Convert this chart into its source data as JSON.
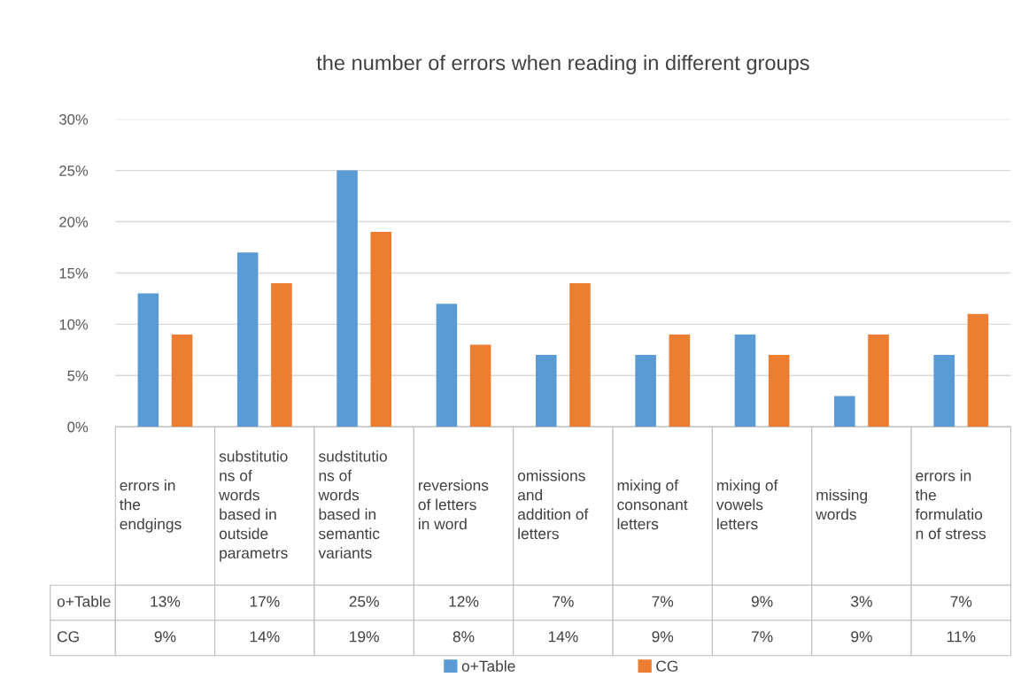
{
  "chart_data": {
    "type": "bar",
    "title": "the number of errors when reading in different groups",
    "categories": [
      "errors in\nthe\nendgings",
      "substitutio\nns of\nwords\nbased in\noutside\nparametrs",
      "sudstitutio\nns of\nwords\nbased in\nsemantic\nvariants",
      "reversions\nof letters\nin word",
      "omissions\nand\naddition of\nletters",
      "mixing of\nconsonant\nletters",
      "mixing of\nvowels\nletters",
      "missing\nwords",
      "errors in\nthe\nformulatio\nn of stress"
    ],
    "series": [
      {
        "name": "o+Table",
        "color": "#5b9bd5",
        "values": [
          13,
          17,
          25,
          12,
          7,
          7,
          9,
          3,
          7
        ],
        "value_labels": [
          "13%",
          "17%",
          "25%",
          "12%",
          "7%",
          "7%",
          "9%",
          "3%",
          "7%"
        ]
      },
      {
        "name": "CG",
        "color": "#ed7d31",
        "values": [
          9,
          14,
          19,
          8,
          14,
          9,
          7,
          9,
          11
        ],
        "value_labels": [
          "9%",
          "14%",
          "19%",
          "8%",
          "14%",
          "9%",
          "7%",
          "9%",
          "11%"
        ]
      }
    ],
    "ylim": [
      0,
      30
    ],
    "yticks": [
      {
        "value": 0,
        "label": "0%"
      },
      {
        "value": 5,
        "label": "5%"
      },
      {
        "value": 10,
        "label": "10%"
      },
      {
        "value": 15,
        "label": "15%"
      },
      {
        "value": 20,
        "label": "20%"
      },
      {
        "value": 25,
        "label": "25%"
      },
      {
        "value": 30,
        "label": "30%"
      }
    ],
    "grid": "y",
    "legend": "bottom"
  }
}
